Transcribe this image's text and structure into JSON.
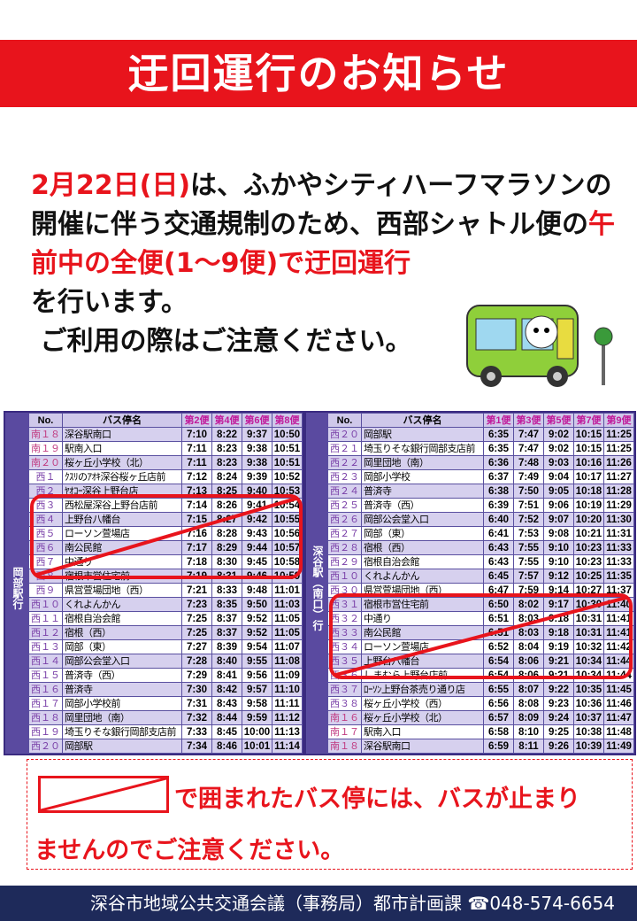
{
  "title": "迂回運行のお知らせ",
  "body": {
    "p1a": "2月22日(日)",
    "p1b": "は、ふかやシティハーフマラソンの開催に伴う交通規制のため、西部シャトル便の",
    "p1c": "午前中の全便(1〜9便)で迂回運行",
    "p1d": "を行います。",
    "p2": "ご利用の際はご注意ください。"
  },
  "left_table": {
    "side_label": "岡部駅行",
    "headers": [
      "No.",
      "バス停名",
      "第2便",
      "第4便",
      "第6便",
      "第8便"
    ],
    "rows": [
      [
        "南１８",
        "深谷駅南口",
        "7:10",
        "8:22",
        "9:37",
        "10:50"
      ],
      [
        "南１９",
        "駅南入口",
        "7:11",
        "8:23",
        "9:38",
        "10:51"
      ],
      [
        "南２０",
        "桜ヶ丘小学校（北）",
        "7:11",
        "8:23",
        "9:38",
        "10:51"
      ],
      [
        "西１",
        "ｸｽﾘのｱｵｷ深谷桜ヶ丘店前",
        "7:12",
        "8:24",
        "9:39",
        "10:52"
      ],
      [
        "西２",
        "ﾔｵｺｰ深谷上野台店",
        "7:13",
        "8:25",
        "9:40",
        "10:53"
      ],
      [
        "西３",
        "西松屋深谷上野台店前",
        "7:14",
        "8:26",
        "9:41",
        "10:54"
      ],
      [
        "西４",
        "上野台八幡台",
        "7:15",
        "8:27",
        "9:42",
        "10:55"
      ],
      [
        "西５",
        "ローソン萱場店",
        "7:16",
        "8:28",
        "9:43",
        "10:56"
      ],
      [
        "西６",
        "南公民館",
        "7:17",
        "8:29",
        "9:44",
        "10:57"
      ],
      [
        "西７",
        "中通り",
        "7:18",
        "8:30",
        "9:45",
        "10:58"
      ],
      [
        "西８",
        "宿根市営住宅前",
        "7:19",
        "8:31",
        "9:46",
        "10:59"
      ],
      [
        "西９",
        "県営萱場団地（西）",
        "7:21",
        "8:33",
        "9:48",
        "11:01"
      ],
      [
        "西１０",
        "くれよんかん",
        "7:23",
        "8:35",
        "9:50",
        "11:03"
      ],
      [
        "西１１",
        "宿根自治会館",
        "7:25",
        "8:37",
        "9:52",
        "11:05"
      ],
      [
        "西１２",
        "宿根（西）",
        "7:25",
        "8:37",
        "9:52",
        "11:05"
      ],
      [
        "西１３",
        "岡部（東）",
        "7:27",
        "8:39",
        "9:54",
        "11:07"
      ],
      [
        "西１４",
        "岡部公会堂入口",
        "7:28",
        "8:40",
        "9:55",
        "11:08"
      ],
      [
        "西１５",
        "普済寺（西）",
        "7:29",
        "8:41",
        "9:56",
        "11:09"
      ],
      [
        "西１６",
        "普済寺",
        "7:30",
        "8:42",
        "9:57",
        "11:10"
      ],
      [
        "西１７",
        "岡部小学校前",
        "7:31",
        "8:43",
        "9:58",
        "11:11"
      ],
      [
        "西１８",
        "岡里団地（南）",
        "7:32",
        "8:44",
        "9:59",
        "11:12"
      ],
      [
        "西１９",
        "埼玉りそな銀行岡部支店前",
        "7:33",
        "8:45",
        "10:00",
        "11:13"
      ],
      [
        "西２０",
        "岡部駅",
        "7:34",
        "8:46",
        "10:01",
        "11:14"
      ]
    ]
  },
  "right_table": {
    "side_label": "深谷駅（南口）行",
    "headers": [
      "No.",
      "バス停名",
      "第1便",
      "第3便",
      "第5便",
      "第7便",
      "第9便"
    ],
    "rows": [
      [
        "西２０",
        "岡部駅",
        "6:35",
        "7:47",
        "9:02",
        "10:15",
        "11:25"
      ],
      [
        "西２１",
        "埼玉りそな銀行岡部支店前",
        "6:35",
        "7:47",
        "9:02",
        "10:15",
        "11:25"
      ],
      [
        "西２２",
        "岡里団地（南）",
        "6:36",
        "7:48",
        "9:03",
        "10:16",
        "11:26"
      ],
      [
        "西２３",
        "岡部小学校",
        "6:37",
        "7:49",
        "9:04",
        "10:17",
        "11:27"
      ],
      [
        "西２４",
        "普済寺",
        "6:38",
        "7:50",
        "9:05",
        "10:18",
        "11:28"
      ],
      [
        "西２５",
        "普済寺（西）",
        "6:39",
        "7:51",
        "9:06",
        "10:19",
        "11:29"
      ],
      [
        "西２６",
        "岡部公会堂入口",
        "6:40",
        "7:52",
        "9:07",
        "10:20",
        "11:30"
      ],
      [
        "西２７",
        "岡部（東）",
        "6:41",
        "7:53",
        "9:08",
        "10:21",
        "11:31"
      ],
      [
        "西２８",
        "宿根（西）",
        "6:43",
        "7:55",
        "9:10",
        "10:23",
        "11:33"
      ],
      [
        "西２９",
        "宿根自治会館",
        "6:43",
        "7:55",
        "9:10",
        "10:23",
        "11:33"
      ],
      [
        "西１０",
        "くれよんかん",
        "6:45",
        "7:57",
        "9:12",
        "10:25",
        "11:35"
      ],
      [
        "西３０",
        "県営萱場団地（西）",
        "6:47",
        "7:59",
        "9:14",
        "10:27",
        "11:37"
      ],
      [
        "西３１",
        "宿根市営住宅前",
        "6:50",
        "8:02",
        "9:17",
        "10:30",
        "11:40"
      ],
      [
        "西３２",
        "中通り",
        "6:51",
        "8:03",
        "9:18",
        "10:31",
        "11:41"
      ],
      [
        "西３３",
        "南公民館",
        "6:51",
        "8:03",
        "9:18",
        "10:31",
        "11:41"
      ],
      [
        "西３４",
        "ローソン萱場店",
        "6:52",
        "8:04",
        "9:19",
        "10:32",
        "11:42"
      ],
      [
        "西３５",
        "上野台八幡台",
        "6:54",
        "8:06",
        "9:21",
        "10:34",
        "11:44"
      ],
      [
        "西３６",
        "しまむら上野台店前",
        "6:54",
        "8:06",
        "9:21",
        "10:34",
        "11:44"
      ],
      [
        "西３７",
        "ﾛｰｿﾝ上野台茶売り通り店",
        "6:55",
        "8:07",
        "9:22",
        "10:35",
        "11:45"
      ],
      [
        "西３８",
        "桜ヶ丘小学校（西）",
        "6:56",
        "8:08",
        "9:23",
        "10:36",
        "11:46"
      ],
      [
        "南１６",
        "桜ヶ丘小学校（北）",
        "6:57",
        "8:09",
        "9:24",
        "10:37",
        "11:47"
      ],
      [
        "南１７",
        "駅南入口",
        "6:58",
        "8:10",
        "9:25",
        "10:38",
        "11:48"
      ],
      [
        "南１８",
        "深谷駅南口",
        "6:59",
        "8:11",
        "9:26",
        "10:39",
        "11:49"
      ]
    ]
  },
  "note": {
    "line1": "で囲まれたバス停には、バスが止まり",
    "line2": "ませんのでご注意ください。"
  },
  "footer": "深谷市地域公共交通会議（事務局）都市計画課 ☎048-574-6654",
  "colors": {
    "red": "#e8141c",
    "purple": "#5a4aa0",
    "navy": "#1e2a5a"
  }
}
